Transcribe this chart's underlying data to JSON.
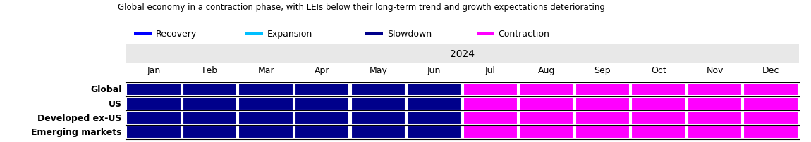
{
  "title": "Global economy in a contraction phase, with LEIs below their long-term trend and growth expectations deteriorating",
  "year_label": "2024",
  "months": [
    "Jan",
    "Feb",
    "Mar",
    "Apr",
    "May",
    "Jun",
    "Jul",
    "Aug",
    "Sep",
    "Oct",
    "Nov",
    "Dec"
  ],
  "regions": [
    "Global",
    "US",
    "Developed ex-US",
    "Emerging markets"
  ],
  "regime_data": {
    "Global": [
      "slow",
      "slow",
      "slow",
      "slow",
      "slow",
      "slow",
      "cont",
      "cont",
      "cont",
      "cont",
      "cont",
      "cont"
    ],
    "US": [
      "slow",
      "slow",
      "slow",
      "slow",
      "slow",
      "slow",
      "cont",
      "cont",
      "cont",
      "cont",
      "cont",
      "cont"
    ],
    "Developed ex-US": [
      "slow",
      "slow",
      "slow",
      "slow",
      "slow",
      "slow",
      "cont",
      "cont",
      "cont",
      "cont",
      "cont",
      "cont"
    ],
    "Emerging markets": [
      "slow",
      "slow",
      "slow",
      "slow",
      "slow",
      "slow",
      "cont",
      "cont",
      "cont",
      "cont",
      "cont",
      "cont"
    ]
  },
  "colors": {
    "recovery": "#0000FF",
    "expansion": "#00BFFF",
    "slowdown": "#00008B",
    "contraction": "#FF00FF"
  },
  "legend": [
    {
      "label": "Recovery",
      "color": "#0000FF"
    },
    {
      "label": "Expansion",
      "color": "#00BFFF"
    },
    {
      "label": "Slowdown",
      "color": "#00008B"
    },
    {
      "label": "Contraction",
      "color": "#FF00FF"
    }
  ],
  "background_color": "#ffffff",
  "cell_edge_color": "#ffffff",
  "header_bg": "#e8e8e8",
  "title_fontsize": 8.5,
  "label_fontsize": 9,
  "month_fontsize": 9,
  "year_fontsize": 10
}
